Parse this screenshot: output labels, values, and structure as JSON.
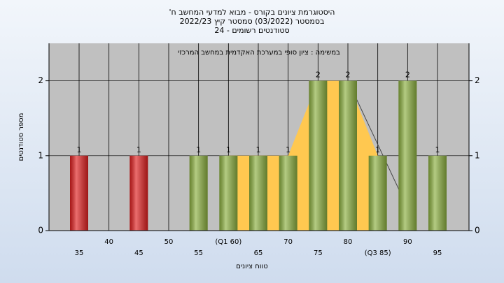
{
  "chart_data": {
    "type": "bar",
    "title": [
      "היסטוגרמת ציונים בקורס - מבוא למדעי המחשב ח'",
      "בסמסטר  (03/2022)  סמסטר קיץ 2022/23",
      "סטודנטים רשומים - 24"
    ],
    "annotation": "במשימה : ציון סופי במערכת האקדמית במחשב המרכזי",
    "xlabel": "טווח ציונים",
    "ylabel": "מספר סטודנטים",
    "categories": [
      "35",
      "40",
      "45",
      "50",
      "55",
      "(Q1 60)",
      "65",
      "70",
      "75",
      "80",
      "(Q3 85)",
      "90",
      "95"
    ],
    "values": [
      1,
      0,
      1,
      0,
      1,
      1,
      1,
      1,
      2,
      2,
      1,
      2,
      1
    ],
    "colors": [
      "#e02020",
      "#8cb040",
      "#e02020",
      "#8cb040",
      "#8cb040",
      "#8cb040",
      "#8cb040",
      "#8cb040",
      "#8cb040",
      "#8cb040",
      "#8cb040",
      "#8cb040",
      "#8cb040"
    ],
    "area_values": [
      null,
      null,
      null,
      null,
      null,
      1,
      1,
      1,
      2,
      2,
      1,
      null,
      null
    ],
    "area_color": "#ffc850",
    "line_values": [
      null,
      null,
      null,
      null,
      null,
      null,
      null,
      null,
      null,
      2,
      1.15,
      0.3,
      null
    ],
    "ylim": [
      0,
      2.5
    ],
    "yticks": [
      0,
      1,
      2
    ]
  }
}
